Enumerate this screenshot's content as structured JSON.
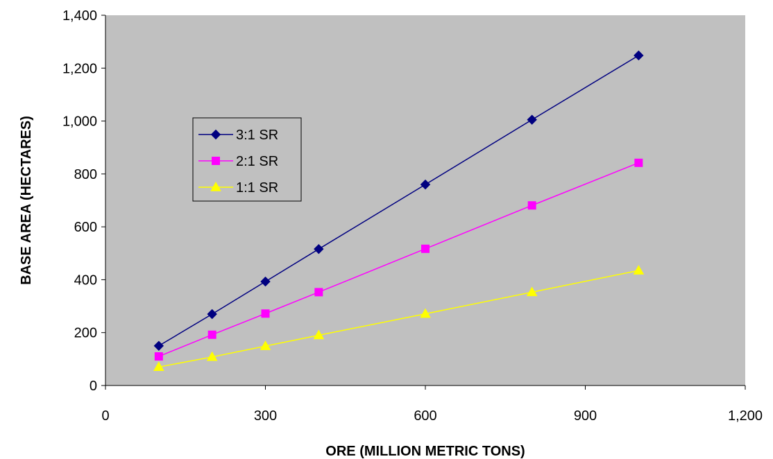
{
  "chart_data": {
    "type": "line",
    "title": "",
    "xlabel": "ORE (MILLION METRIC TONS)",
    "ylabel": "BASE AREA (HECTARES)",
    "xlim": [
      0,
      1200
    ],
    "ylim": [
      0,
      1400
    ],
    "xticks": [
      0,
      300,
      600,
      900,
      1200
    ],
    "yticks": [
      0,
      200,
      400,
      600,
      800,
      1000,
      1200,
      1400
    ],
    "xtick_labels": [
      "0",
      "300",
      "600",
      "900",
      "1,200"
    ],
    "ytick_labels": [
      "0",
      "200",
      "400",
      "600",
      "800",
      "1,000",
      "1,200",
      "1,400"
    ],
    "x": [
      100,
      200,
      300,
      400,
      600,
      800,
      1000
    ],
    "series": [
      {
        "name": "3:1 SR",
        "values": [
          150,
          270,
          393,
          516,
          760,
          1005,
          1248
        ],
        "color": "#000080",
        "marker": "diamond"
      },
      {
        "name": "2:1 SR",
        "values": [
          110,
          192,
          272,
          353,
          517,
          681,
          842
        ],
        "color": "#ff00ff",
        "marker": "square"
      },
      {
        "name": "1:1 SR",
        "values": [
          70,
          108,
          149,
          190,
          271,
          353,
          435
        ],
        "color": "#ffff00",
        "marker": "triangle"
      }
    ],
    "legend_position": "upper-left",
    "plot_background": "#c0c0c0",
    "grid": false
  }
}
